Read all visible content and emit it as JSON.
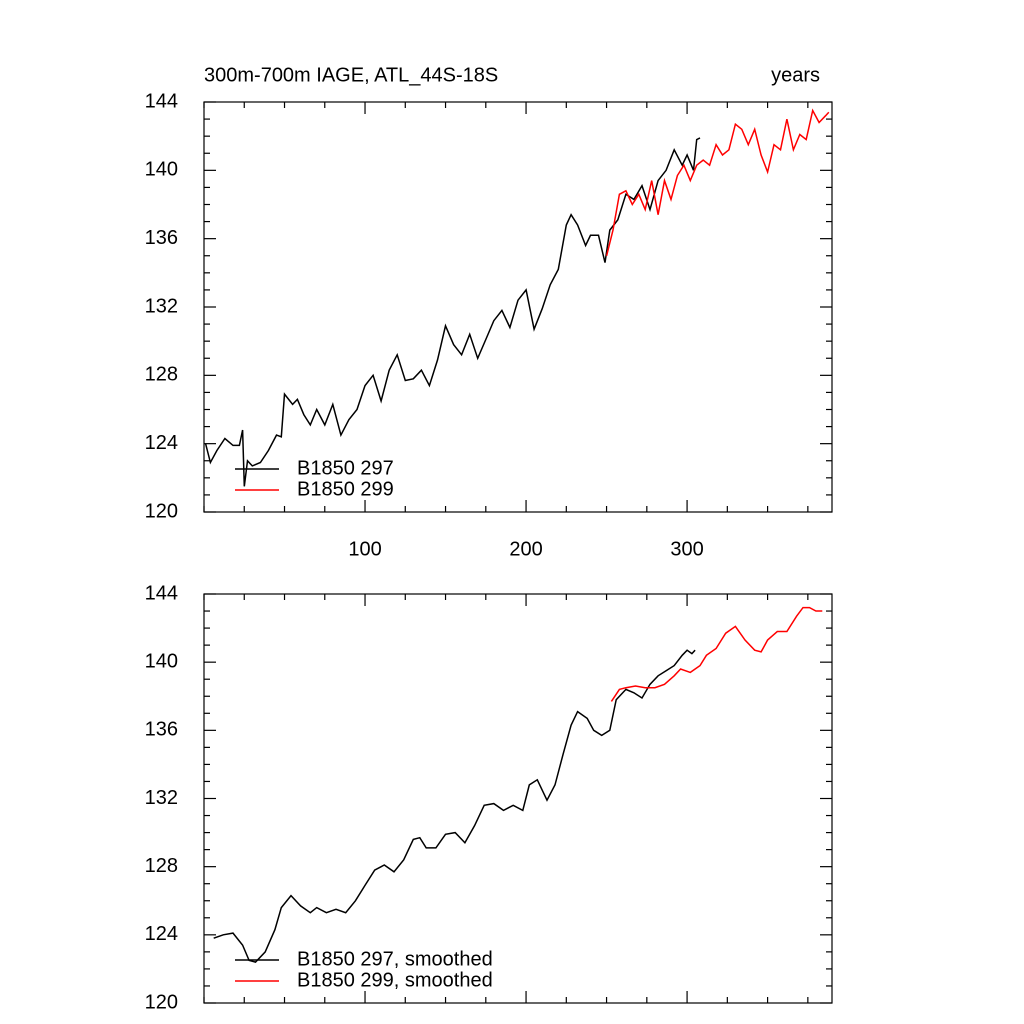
{
  "chart_data": [
    {
      "type": "line",
      "title": "300m-700m IAGE, ATL_44S-18S",
      "right_title": "years",
      "xlim": [
        0,
        390
      ],
      "xticks": [
        100,
        200,
        300
      ],
      "xtick_labels": true,
      "ylim": [
        120,
        144
      ],
      "yticks": [
        120,
        124,
        128,
        132,
        136,
        140,
        144
      ],
      "legend": "lower left",
      "series": [
        {
          "name": "B1850 297",
          "color": "#000000",
          "x": [
            1,
            4,
            8,
            13,
            18,
            22,
            24,
            25,
            27,
            30,
            35,
            40,
            45,
            48,
            50,
            55,
            58,
            62,
            66,
            70,
            75,
            80,
            85,
            90,
            95,
            100,
            105,
            110,
            115,
            120,
            125,
            130,
            135,
            140,
            145,
            150,
            155,
            160,
            165,
            170,
            175,
            180,
            185,
            190,
            195,
            200,
            205,
            210,
            215,
            220,
            225,
            228,
            232,
            237,
            240,
            245,
            249,
            252,
            257,
            262,
            267,
            272,
            277,
            282,
            287,
            292,
            297,
            300,
            304,
            306,
            308
          ],
          "values": [
            124.0,
            122.9,
            123.6,
            124.3,
            123.9,
            123.9,
            124.8,
            121.5,
            123.0,
            122.7,
            122.9,
            123.6,
            124.5,
            124.4,
            126.9,
            126.3,
            126.6,
            125.7,
            125.1,
            126.0,
            125.1,
            126.3,
            124.5,
            125.4,
            126.0,
            127.4,
            128.0,
            126.5,
            128.3,
            129.2,
            127.7,
            127.8,
            128.3,
            127.4,
            128.9,
            130.9,
            129.8,
            129.2,
            130.4,
            129.0,
            130.1,
            131.2,
            131.8,
            130.8,
            132.4,
            133.0,
            130.7,
            131.9,
            133.3,
            134.2,
            136.8,
            137.4,
            136.8,
            135.6,
            136.2,
            136.2,
            134.6,
            136.5,
            137.1,
            138.6,
            138.3,
            139.1,
            137.7,
            139.4,
            140.0,
            141.2,
            140.3,
            140.9,
            140.0,
            141.8,
            141.9
          ]
        },
        {
          "name": "B1850 299",
          "color": "#ff0000",
          "x": [
            250,
            254,
            258,
            262,
            266,
            270,
            274,
            278,
            282,
            286,
            290,
            294,
            298,
            302,
            306,
            310,
            314,
            318,
            322,
            326,
            330,
            334,
            338,
            342,
            346,
            350,
            354,
            358,
            362,
            366,
            370,
            374,
            378,
            382,
            386,
            388
          ],
          "values": [
            135.0,
            136.5,
            138.6,
            138.8,
            138.0,
            138.6,
            137.7,
            139.4,
            137.4,
            139.4,
            138.3,
            139.7,
            140.3,
            139.4,
            140.3,
            140.6,
            140.3,
            141.5,
            140.9,
            141.2,
            142.7,
            142.4,
            141.5,
            142.4,
            140.9,
            139.9,
            141.5,
            141.2,
            143.0,
            141.2,
            142.1,
            141.8,
            143.5,
            142.8,
            143.2,
            143.4
          ]
        }
      ]
    },
    {
      "type": "line",
      "xlim": [
        0,
        390
      ],
      "xticks": [
        100,
        200,
        300
      ],
      "xtick_labels": false,
      "ylim": [
        120,
        144
      ],
      "yticks": [
        120,
        124,
        128,
        132,
        136,
        140,
        144
      ],
      "legend": "lower left",
      "series": [
        {
          "name": "B1850 297, smoothed",
          "color": "#000000",
          "x": [
            6,
            12,
            18,
            24,
            28,
            32,
            38,
            44,
            48,
            54,
            60,
            66,
            70,
            76,
            82,
            88,
            94,
            100,
            106,
            112,
            118,
            124,
            130,
            134,
            138,
            144,
            150,
            156,
            162,
            168,
            174,
            180,
            186,
            192,
            198,
            202,
            207,
            213,
            218,
            223,
            228,
            232,
            238,
            242,
            247,
            252,
            256,
            262,
            267,
            272,
            277,
            282,
            287,
            292,
            297,
            300,
            303,
            305
          ],
          "values": [
            123.8,
            124.0,
            124.1,
            123.4,
            122.5,
            122.4,
            123.0,
            124.3,
            125.6,
            126.3,
            125.7,
            125.3,
            125.6,
            125.3,
            125.5,
            125.3,
            126.0,
            126.9,
            127.8,
            128.1,
            127.7,
            128.4,
            129.6,
            129.7,
            129.1,
            129.1,
            129.9,
            130.0,
            129.4,
            130.4,
            131.6,
            131.7,
            131.3,
            131.6,
            131.3,
            132.8,
            133.1,
            131.9,
            132.8,
            134.6,
            136.3,
            137.1,
            136.7,
            136.0,
            135.7,
            136.0,
            137.8,
            138.4,
            138.2,
            137.9,
            138.7,
            139.2,
            139.5,
            139.8,
            140.4,
            140.7,
            140.5,
            140.7
          ]
        },
        {
          "name": "B1850 299, smoothed",
          "color": "#ff0000",
          "x": [
            253,
            258,
            262,
            268,
            274,
            280,
            286,
            292,
            296,
            302,
            308,
            312,
            318,
            324,
            330,
            336,
            342,
            346,
            350,
            356,
            362,
            368,
            372,
            376,
            380,
            384
          ],
          "values": [
            137.7,
            138.4,
            138.5,
            138.6,
            138.5,
            138.5,
            138.7,
            139.2,
            139.6,
            139.4,
            139.8,
            140.4,
            140.8,
            141.7,
            142.1,
            141.3,
            140.7,
            140.6,
            141.3,
            141.8,
            141.8,
            142.7,
            143.2,
            143.2,
            143.0,
            143.0
          ]
        }
      ]
    }
  ]
}
